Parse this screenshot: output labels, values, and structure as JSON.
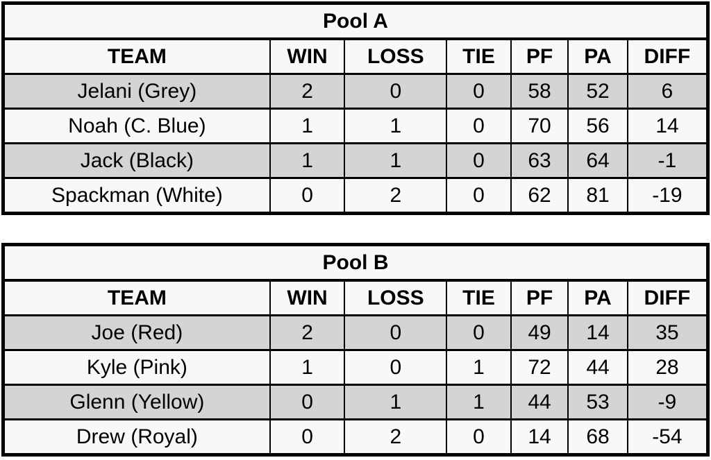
{
  "colors": {
    "row_shaded": "#d4d4d4",
    "row_plain": "#f8f8f8",
    "grid_border": "#000000",
    "text": "#000000",
    "page_background": "#ffffff"
  },
  "tables": [
    {
      "title": "Pool A",
      "columns": [
        "TEAM",
        "WIN",
        "LOSS",
        "TIE",
        "PF",
        "PA",
        "DIFF"
      ],
      "rows": [
        [
          "Jelani (Grey)",
          "2",
          "0",
          "0",
          "58",
          "52",
          "6"
        ],
        [
          "Noah (C. Blue)",
          "1",
          "1",
          "0",
          "70",
          "56",
          "14"
        ],
        [
          "Jack (Black)",
          "1",
          "1",
          "0",
          "63",
          "64",
          "-1"
        ],
        [
          "Spackman (White)",
          "0",
          "2",
          "0",
          "62",
          "81",
          "-19"
        ]
      ]
    },
    {
      "title": "Pool B",
      "columns": [
        "TEAM",
        "WIN",
        "LOSS",
        "TIE",
        "PF",
        "PA",
        "DIFF"
      ],
      "rows": [
        [
          "Joe (Red)",
          "2",
          "0",
          "0",
          "49",
          "14",
          "35"
        ],
        [
          "Kyle (Pink)",
          "1",
          "0",
          "1",
          "72",
          "44",
          "28"
        ],
        [
          "Glenn (Yellow)",
          "0",
          "1",
          "1",
          "44",
          "53",
          "-9"
        ],
        [
          "Drew (Royal)",
          "0",
          "2",
          "0",
          "14",
          "68",
          "-54"
        ]
      ]
    }
  ],
  "chart_data": [
    {
      "type": "table",
      "title": "Pool A",
      "columns": [
        "TEAM",
        "WIN",
        "LOSS",
        "TIE",
        "PF",
        "PA",
        "DIFF"
      ],
      "rows": [
        {
          "team": "Jelani (Grey)",
          "win": 2,
          "loss": 0,
          "tie": 0,
          "pf": 58,
          "pa": 52,
          "diff": 6
        },
        {
          "team": "Noah (C. Blue)",
          "win": 1,
          "loss": 1,
          "tie": 0,
          "pf": 70,
          "pa": 56,
          "diff": 14
        },
        {
          "team": "Jack (Black)",
          "win": 1,
          "loss": 1,
          "tie": 0,
          "pf": 63,
          "pa": 64,
          "diff": -1
        },
        {
          "team": "Spackman (White)",
          "win": 0,
          "loss": 2,
          "tie": 0,
          "pf": 62,
          "pa": 81,
          "diff": -19
        }
      ]
    },
    {
      "type": "table",
      "title": "Pool B",
      "columns": [
        "TEAM",
        "WIN",
        "LOSS",
        "TIE",
        "PF",
        "PA",
        "DIFF"
      ],
      "rows": [
        {
          "team": "Joe (Red)",
          "win": 2,
          "loss": 0,
          "tie": 0,
          "pf": 49,
          "pa": 14,
          "diff": 35
        },
        {
          "team": "Kyle (Pink)",
          "win": 1,
          "loss": 0,
          "tie": 1,
          "pf": 72,
          "pa": 44,
          "diff": 28
        },
        {
          "team": "Glenn (Yellow)",
          "win": 0,
          "loss": 1,
          "tie": 1,
          "pf": 44,
          "pa": 53,
          "diff": -9
        },
        {
          "team": "Drew (Royal)",
          "win": 0,
          "loss": 2,
          "tie": 0,
          "pf": 14,
          "pa": 68,
          "diff": -54
        }
      ]
    }
  ]
}
